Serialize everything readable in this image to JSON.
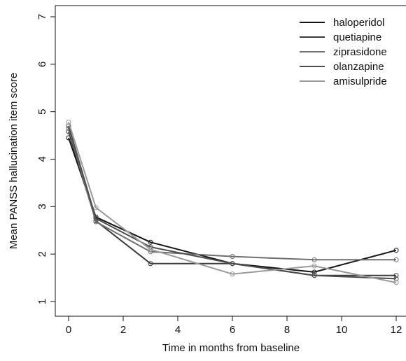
{
  "chart_data": {
    "type": "line",
    "xlabel": "Time in months from baseline",
    "ylabel": "Mean PANSS hallucination item score",
    "xlim": [
      0,
      12
    ],
    "ylim": [
      1,
      7
    ],
    "x_ticks": [
      0,
      2,
      4,
      6,
      8,
      10,
      12
    ],
    "y_ticks": [
      1,
      2,
      3,
      4,
      5,
      6,
      7
    ],
    "x": [
      0,
      1,
      3,
      6,
      9,
      12
    ],
    "legend_position": "top-right",
    "grid": false,
    "series": [
      {
        "name": "haloperidol",
        "color": "#151515",
        "values": [
          4.45,
          2.78,
          2.25,
          1.8,
          1.62,
          2.08
        ]
      },
      {
        "name": "quetiapine",
        "color": "#3c3c3c",
        "values": [
          4.58,
          2.7,
          1.8,
          1.8,
          1.55,
          1.55
        ]
      },
      {
        "name": "ziprasidone",
        "color": "#6e6e6e",
        "values": [
          4.65,
          2.68,
          2.05,
          1.95,
          1.88,
          1.88
        ]
      },
      {
        "name": "olanzapine",
        "color": "#4d4d4d",
        "values": [
          4.7,
          2.75,
          2.15,
          1.8,
          1.55,
          1.48
        ]
      },
      {
        "name": "amisulpride",
        "color": "#9a9a9a",
        "values": [
          4.78,
          2.98,
          2.1,
          1.58,
          1.75,
          1.4
        ]
      }
    ]
  }
}
